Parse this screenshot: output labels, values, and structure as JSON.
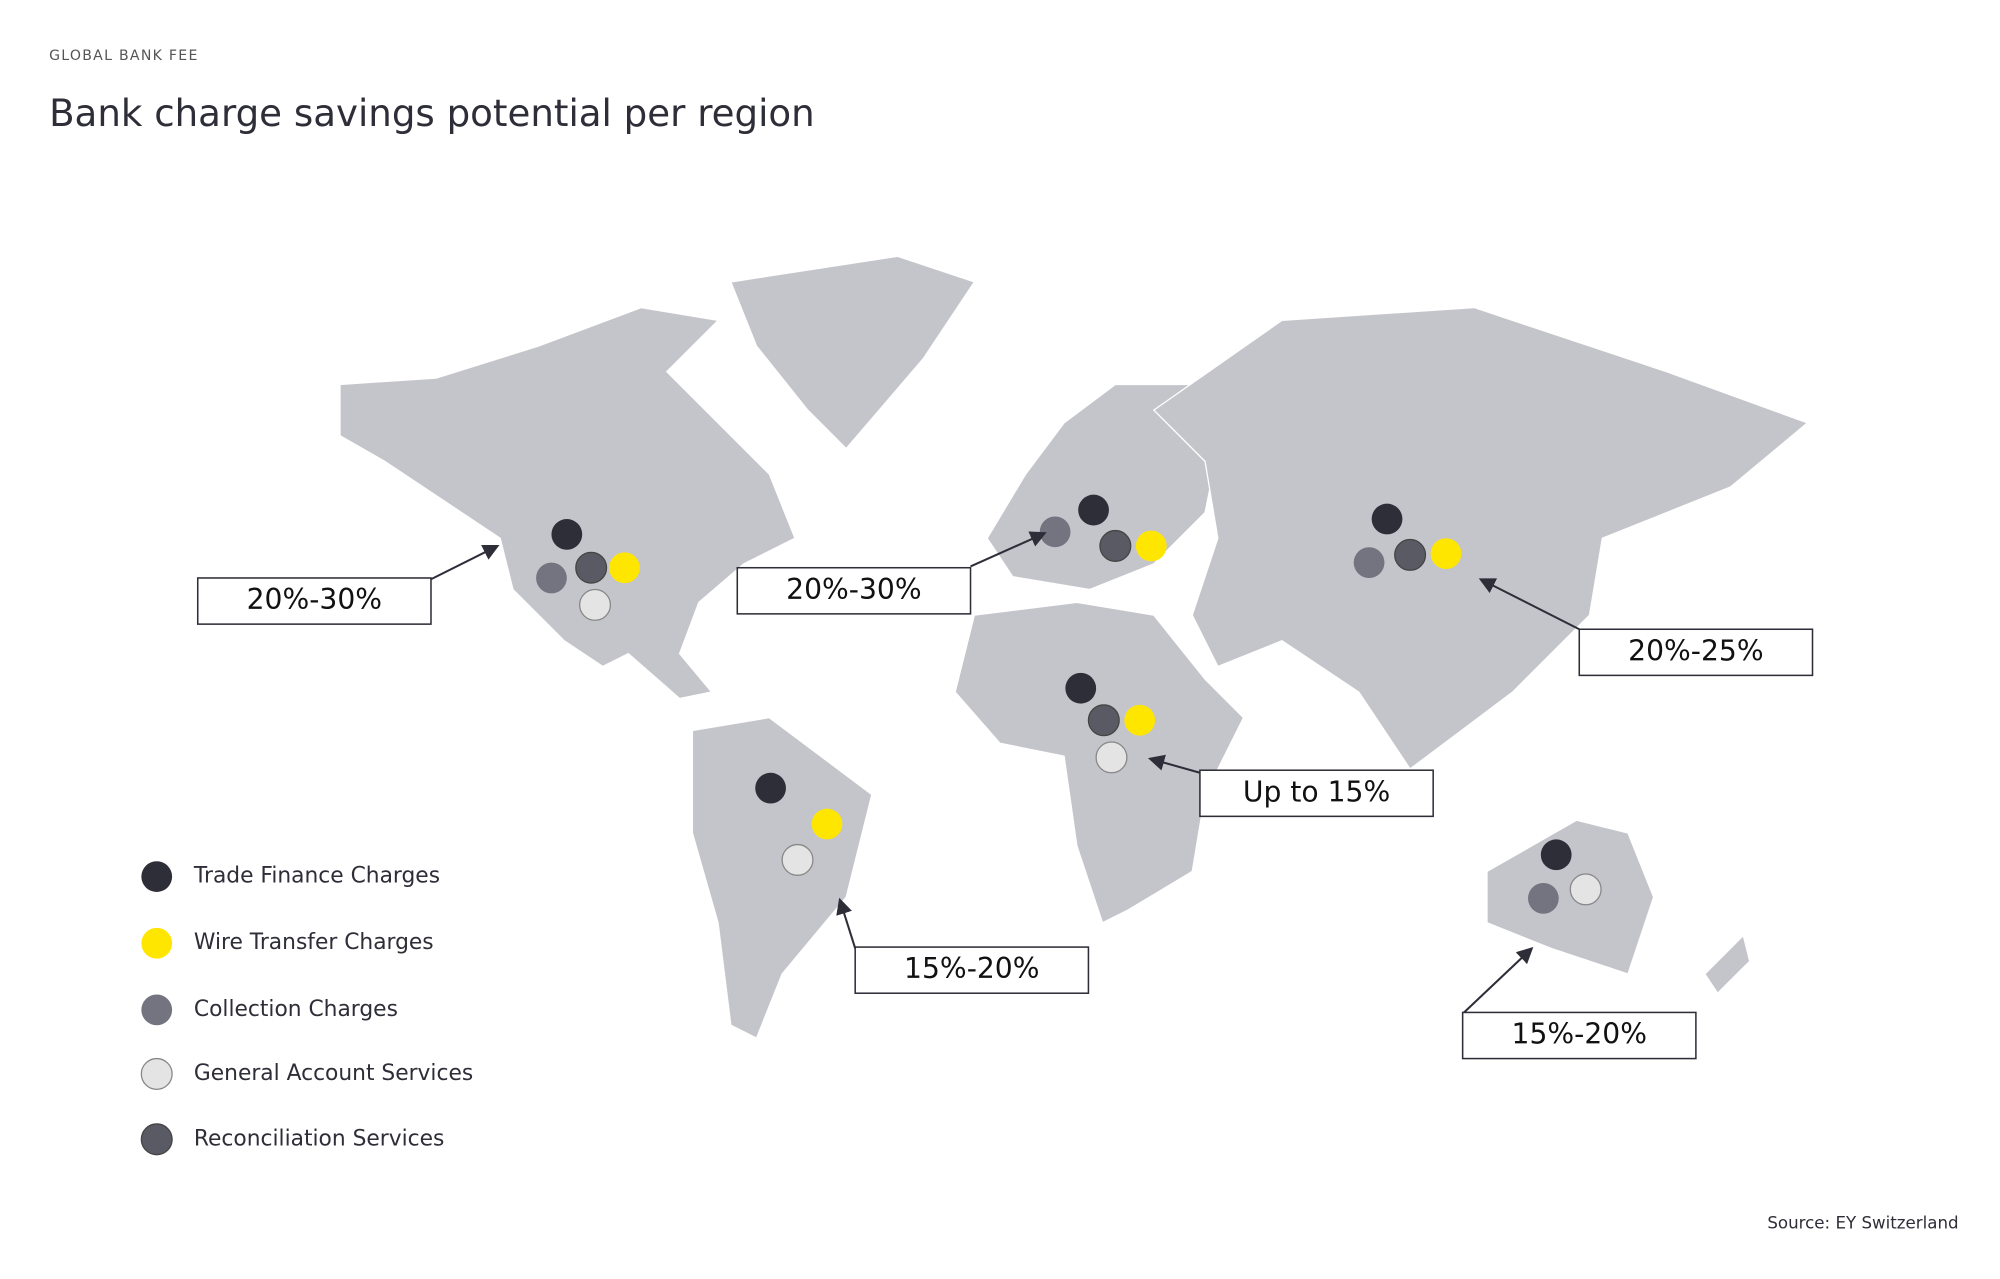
{
  "header": {
    "kicker": "GLOBAL BANK FEE",
    "title": "Bank charge savings potential per region"
  },
  "regions": [
    {
      "label": "20%-30%"
    },
    {
      "label": "20%-30%"
    },
    {
      "label": "20%-25%"
    },
    {
      "label": "Up to 15%"
    },
    {
      "label": "15%-20%"
    },
    {
      "label": "15%-20%"
    }
  ],
  "legend": [
    {
      "label": "Trade Finance Charges"
    },
    {
      "label": "Wire Transfer Charges"
    },
    {
      "label": "Collection Charges"
    },
    {
      "label": "General Account Services"
    },
    {
      "label": "Reconciliation Services"
    }
  ],
  "source": "Source: EY Switzerland"
}
